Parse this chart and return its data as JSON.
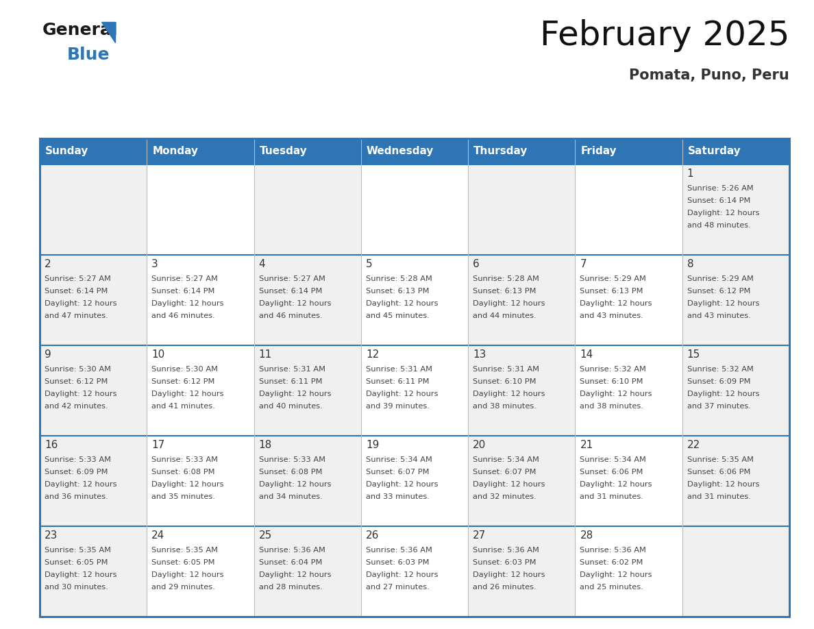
{
  "title": "February 2025",
  "subtitle": "Pomata, Puno, Peru",
  "days_of_week": [
    "Sunday",
    "Monday",
    "Tuesday",
    "Wednesday",
    "Thursday",
    "Friday",
    "Saturday"
  ],
  "header_bg": "#2E75B6",
  "header_text": "#FFFFFF",
  "cell_bg_light": "#F0F0F0",
  "cell_bg_white": "#FFFFFF",
  "border_color": "#2E75B6",
  "text_color": "#444444",
  "day_num_color": "#333333",
  "calendar": [
    [
      null,
      null,
      null,
      null,
      null,
      null,
      {
        "day": 1,
        "sunrise": "5:26 AM",
        "sunset": "6:14 PM",
        "daylight": "12 hours and 48 minutes."
      }
    ],
    [
      {
        "day": 2,
        "sunrise": "5:27 AM",
        "sunset": "6:14 PM",
        "daylight": "12 hours and 47 minutes."
      },
      {
        "day": 3,
        "sunrise": "5:27 AM",
        "sunset": "6:14 PM",
        "daylight": "12 hours and 46 minutes."
      },
      {
        "day": 4,
        "sunrise": "5:27 AM",
        "sunset": "6:14 PM",
        "daylight": "12 hours and 46 minutes."
      },
      {
        "day": 5,
        "sunrise": "5:28 AM",
        "sunset": "6:13 PM",
        "daylight": "12 hours and 45 minutes."
      },
      {
        "day": 6,
        "sunrise": "5:28 AM",
        "sunset": "6:13 PM",
        "daylight": "12 hours and 44 minutes."
      },
      {
        "day": 7,
        "sunrise": "5:29 AM",
        "sunset": "6:13 PM",
        "daylight": "12 hours and 43 minutes."
      },
      {
        "day": 8,
        "sunrise": "5:29 AM",
        "sunset": "6:12 PM",
        "daylight": "12 hours and 43 minutes."
      }
    ],
    [
      {
        "day": 9,
        "sunrise": "5:30 AM",
        "sunset": "6:12 PM",
        "daylight": "12 hours and 42 minutes."
      },
      {
        "day": 10,
        "sunrise": "5:30 AM",
        "sunset": "6:12 PM",
        "daylight": "12 hours and 41 minutes."
      },
      {
        "day": 11,
        "sunrise": "5:31 AM",
        "sunset": "6:11 PM",
        "daylight": "12 hours and 40 minutes."
      },
      {
        "day": 12,
        "sunrise": "5:31 AM",
        "sunset": "6:11 PM",
        "daylight": "12 hours and 39 minutes."
      },
      {
        "day": 13,
        "sunrise": "5:31 AM",
        "sunset": "6:10 PM",
        "daylight": "12 hours and 38 minutes."
      },
      {
        "day": 14,
        "sunrise": "5:32 AM",
        "sunset": "6:10 PM",
        "daylight": "12 hours and 38 minutes."
      },
      {
        "day": 15,
        "sunrise": "5:32 AM",
        "sunset": "6:09 PM",
        "daylight": "12 hours and 37 minutes."
      }
    ],
    [
      {
        "day": 16,
        "sunrise": "5:33 AM",
        "sunset": "6:09 PM",
        "daylight": "12 hours and 36 minutes."
      },
      {
        "day": 17,
        "sunrise": "5:33 AM",
        "sunset": "6:08 PM",
        "daylight": "12 hours and 35 minutes."
      },
      {
        "day": 18,
        "sunrise": "5:33 AM",
        "sunset": "6:08 PM",
        "daylight": "12 hours and 34 minutes."
      },
      {
        "day": 19,
        "sunrise": "5:34 AM",
        "sunset": "6:07 PM",
        "daylight": "12 hours and 33 minutes."
      },
      {
        "day": 20,
        "sunrise": "5:34 AM",
        "sunset": "6:07 PM",
        "daylight": "12 hours and 32 minutes."
      },
      {
        "day": 21,
        "sunrise": "5:34 AM",
        "sunset": "6:06 PM",
        "daylight": "12 hours and 31 minutes."
      },
      {
        "day": 22,
        "sunrise": "5:35 AM",
        "sunset": "6:06 PM",
        "daylight": "12 hours and 31 minutes."
      }
    ],
    [
      {
        "day": 23,
        "sunrise": "5:35 AM",
        "sunset": "6:05 PM",
        "daylight": "12 hours and 30 minutes."
      },
      {
        "day": 24,
        "sunrise": "5:35 AM",
        "sunset": "6:05 PM",
        "daylight": "12 hours and 29 minutes."
      },
      {
        "day": 25,
        "sunrise": "5:36 AM",
        "sunset": "6:04 PM",
        "daylight": "12 hours and 28 minutes."
      },
      {
        "day": 26,
        "sunrise": "5:36 AM",
        "sunset": "6:03 PM",
        "daylight": "12 hours and 27 minutes."
      },
      {
        "day": 27,
        "sunrise": "5:36 AM",
        "sunset": "6:03 PM",
        "daylight": "12 hours and 26 minutes."
      },
      {
        "day": 28,
        "sunrise": "5:36 AM",
        "sunset": "6:02 PM",
        "daylight": "12 hours and 25 minutes."
      },
      null
    ]
  ]
}
